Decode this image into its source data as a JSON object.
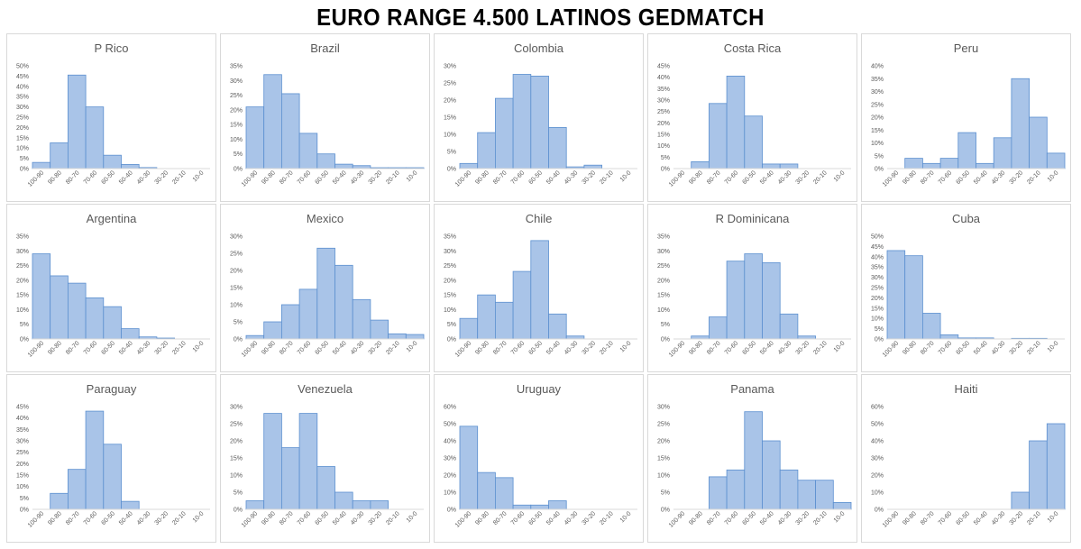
{
  "page_title": "EURO RANGE 4.500 LATINOS GEDMATCH",
  "colors": {
    "bar_fill": "#a9c4e8",
    "bar_stroke": "#5b8fcf",
    "axis": "#d9d9d9"
  },
  "chart_data": [
    {
      "type": "bar",
      "title": "P Rico",
      "categories": [
        "100-90",
        "90-80",
        "80-70",
        "70-60",
        "60-50",
        "50-40",
        "40-30",
        "30-20",
        "20-10",
        "10-0"
      ],
      "values": [
        3,
        12.5,
        45.5,
        30,
        6.5,
        2,
        0.5,
        0,
        0,
        0
      ],
      "ylim": [
        0,
        50
      ],
      "yticks": [
        "0%",
        "5%",
        "10%",
        "15%",
        "20%",
        "25%",
        "30%",
        "35%",
        "40%",
        "45%",
        "50%"
      ]
    },
    {
      "type": "bar",
      "title": "Brazil",
      "categories": [
        "100-90",
        "90-80",
        "80-70",
        "70-60",
        "60-50",
        "50-40",
        "40-30",
        "30-20",
        "20-10",
        "10-0"
      ],
      "values": [
        21,
        32,
        25.5,
        12,
        5,
        1.5,
        1,
        0.3,
        0.3,
        0.3
      ],
      "ylim": [
        0,
        35
      ],
      "yticks": [
        "0%",
        "5%",
        "10%",
        "15%",
        "20%",
        "25%",
        "30%",
        "35%"
      ]
    },
    {
      "type": "bar",
      "title": "Colombia",
      "categories": [
        "100-90",
        "90-80",
        "80-70",
        "70-60",
        "60-50",
        "50-40",
        "40-30",
        "30-20",
        "20-10",
        "10-0"
      ],
      "values": [
        1.5,
        10.5,
        20.5,
        27.5,
        27,
        12,
        0.5,
        1,
        0,
        0
      ],
      "ylim": [
        0,
        30
      ],
      "yticks": [
        "0%",
        "5%",
        "10%",
        "15%",
        "20%",
        "25%",
        "30%"
      ]
    },
    {
      "type": "bar",
      "title": "Costa Rica",
      "categories": [
        "100-90",
        "90-80",
        "80-70",
        "70-60",
        "60-50",
        "50-40",
        "40-30",
        "30-20",
        "20-10",
        "10-0"
      ],
      "values": [
        0,
        3,
        28.5,
        40.5,
        23,
        2,
        2,
        0,
        0,
        0
      ],
      "ylim": [
        0,
        45
      ],
      "yticks": [
        "0%",
        "5%",
        "10%",
        "15%",
        "20%",
        "25%",
        "30%",
        "35%",
        "40%",
        "45%"
      ]
    },
    {
      "type": "bar",
      "title": "Peru",
      "categories": [
        "100-90",
        "90-80",
        "80-70",
        "70-60",
        "60-50",
        "50-40",
        "40-30",
        "30-20",
        "20-10",
        "10-0"
      ],
      "values": [
        0,
        4,
        2,
        4,
        14,
        2,
        12,
        35,
        20,
        6
      ],
      "ylim": [
        0,
        40
      ],
      "yticks": [
        "0%",
        "5%",
        "10%",
        "15%",
        "20%",
        "25%",
        "30%",
        "35%",
        "40%"
      ]
    },
    {
      "type": "bar",
      "title": "Argentina",
      "categories": [
        "100-90",
        "90-80",
        "80-70",
        "70-60",
        "60-50",
        "50-40",
        "40-30",
        "30-20",
        "20-10",
        "10-0"
      ],
      "values": [
        29,
        21.5,
        19,
        14,
        11,
        3.5,
        0.7,
        0.3,
        0,
        0
      ],
      "ylim": [
        0,
        35
      ],
      "yticks": [
        "0%",
        "5%",
        "10%",
        "15%",
        "20%",
        "25%",
        "30%",
        "35%"
      ]
    },
    {
      "type": "bar",
      "title": "Mexico",
      "categories": [
        "100-90",
        "90-80",
        "80-70",
        "70-60",
        "60-50",
        "50-40",
        "40-30",
        "30-20",
        "20-10",
        "10-0"
      ],
      "values": [
        1,
        5,
        10,
        14.5,
        26.5,
        21.5,
        11.5,
        5.5,
        1.5,
        1.3
      ],
      "ylim": [
        0,
        30
      ],
      "yticks": [
        "0%",
        "5%",
        "10%",
        "15%",
        "20%",
        "25%",
        "30%"
      ]
    },
    {
      "type": "bar",
      "title": "Chile",
      "categories": [
        "100-90",
        "90-80",
        "80-70",
        "70-60",
        "60-50",
        "50-40",
        "40-30",
        "30-20",
        "20-10",
        "10-0"
      ],
      "values": [
        7,
        15,
        12.5,
        23,
        33.5,
        8.5,
        1,
        0,
        0,
        0
      ],
      "ylim": [
        0,
        35
      ],
      "yticks": [
        "0%",
        "5%",
        "10%",
        "15%",
        "20%",
        "25%",
        "30%",
        "35%"
      ]
    },
    {
      "type": "bar",
      "title": "R Dominicana",
      "categories": [
        "100-90",
        "90-80",
        "80-70",
        "70-60",
        "60-50",
        "50-40",
        "40-30",
        "30-20",
        "20-10",
        "10-0"
      ],
      "values": [
        0,
        1,
        7.5,
        26.5,
        29,
        26,
        8.5,
        1,
        0,
        0
      ],
      "ylim": [
        0,
        35
      ],
      "yticks": [
        "0%",
        "5%",
        "10%",
        "15%",
        "20%",
        "25%",
        "30%",
        "35%"
      ]
    },
    {
      "type": "bar",
      "title": "Cuba",
      "categories": [
        "100-90",
        "90-80",
        "80-70",
        "70-60",
        "60-50",
        "50-40",
        "40-30",
        "30-20",
        "20-10",
        "10-0"
      ],
      "values": [
        43,
        40.5,
        12.5,
        2,
        0.5,
        0.5,
        0,
        0.3,
        0.3,
        0
      ],
      "ylim": [
        0,
        50
      ],
      "yticks": [
        "0%",
        "5%",
        "10%",
        "15%",
        "20%",
        "25%",
        "30%",
        "35%",
        "40%",
        "45%",
        "50%"
      ]
    },
    {
      "type": "bar",
      "title": "Paraguay",
      "categories": [
        "100-90",
        "90-80",
        "80-70",
        "70-60",
        "60-50",
        "50-40",
        "40-30",
        "30-20",
        "20-10",
        "10-0"
      ],
      "values": [
        0,
        7,
        17.5,
        43,
        28.5,
        3.5,
        0,
        0,
        0,
        0
      ],
      "ylim": [
        0,
        45
      ],
      "yticks": [
        "0%",
        "5%",
        "10%",
        "15%",
        "20%",
        "25%",
        "30%",
        "35%",
        "40%",
        "45%"
      ]
    },
    {
      "type": "bar",
      "title": "Venezuela",
      "categories": [
        "100-90",
        "90-80",
        "80-70",
        "70-60",
        "60-50",
        "50-40",
        "40-30",
        "30-20",
        "20-10",
        "10-0"
      ],
      "values": [
        2.5,
        28,
        18,
        28,
        12.5,
        5,
        2.5,
        2.5,
        0,
        0
      ],
      "ylim": [
        0,
        30
      ],
      "yticks": [
        "0%",
        "5%",
        "10%",
        "15%",
        "20%",
        "25%",
        "30%"
      ]
    },
    {
      "type": "bar",
      "title": "Uruguay",
      "categories": [
        "100-90",
        "90-80",
        "80-70",
        "70-60",
        "60-50",
        "50-40",
        "40-30",
        "30-20",
        "20-10",
        "10-0"
      ],
      "values": [
        48.5,
        21.5,
        18.5,
        2.5,
        2.5,
        5,
        0,
        0,
        0,
        0
      ],
      "ylim": [
        0,
        60
      ],
      "yticks": [
        "0%",
        "10%",
        "20%",
        "30%",
        "40%",
        "50%",
        "60%"
      ]
    },
    {
      "type": "bar",
      "title": "Panama",
      "categories": [
        "100-90",
        "90-80",
        "80-70",
        "70-60",
        "60-50",
        "50-40",
        "40-30",
        "30-20",
        "20-10",
        "10-0"
      ],
      "values": [
        0,
        0,
        9.5,
        11.5,
        28.5,
        20,
        11.5,
        8.5,
        8.5,
        2
      ],
      "ylim": [
        0,
        30
      ],
      "yticks": [
        "0%",
        "5%",
        "10%",
        "15%",
        "20%",
        "25%",
        "30%"
      ]
    },
    {
      "type": "bar",
      "title": "Haiti",
      "categories": [
        "100-90",
        "90-80",
        "80-70",
        "70-60",
        "60-50",
        "50-40",
        "40-30",
        "30-20",
        "20-10",
        "10-0"
      ],
      "values": [
        0,
        0,
        0,
        0,
        0,
        0,
        0,
        10,
        40,
        50
      ],
      "ylim": [
        0,
        60
      ],
      "yticks": [
        "0%",
        "10%",
        "20%",
        "30%",
        "40%",
        "50%",
        "60%"
      ]
    }
  ]
}
